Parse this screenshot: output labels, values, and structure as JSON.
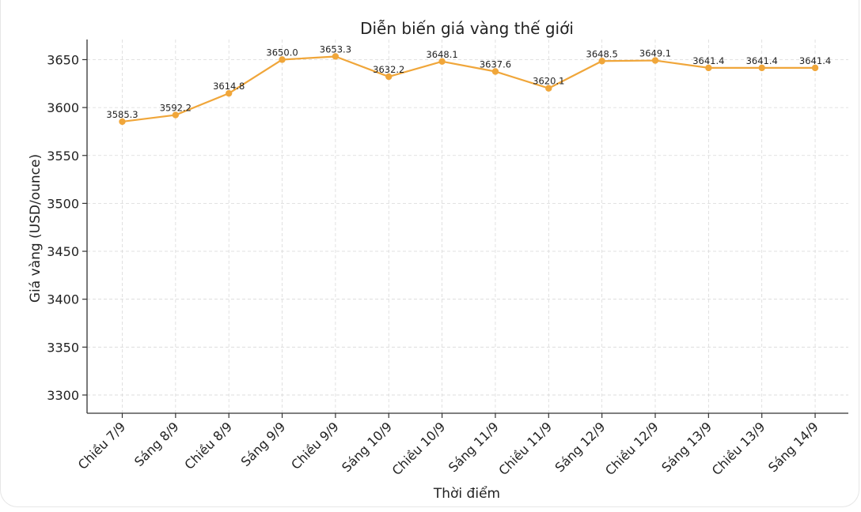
{
  "chart_data": {
    "type": "line",
    "title": "Diễn biến giá vàng thế giới",
    "xlabel": "Thời điểm",
    "ylabel": "Giá vàng (USD/ounce)",
    "categories": [
      "Chiều 7/9",
      "Sáng 8/9",
      "Chiều 8/9",
      "Sáng 9/9",
      "Chiều 9/9",
      "Sáng 10/9",
      "Chiều 10/9",
      "Sáng 11/9",
      "Chiều 11/9",
      "Sáng 12/9",
      "Chiều 12/9",
      "Sáng 13/9",
      "Chiều 13/9",
      "Sáng 14/9"
    ],
    "values": [
      3585.3,
      3592.2,
      3614.8,
      3650.0,
      3653.3,
      3632.2,
      3648.1,
      3637.6,
      3620.1,
      3648.5,
      3649.1,
      3641.4,
      3641.4,
      3641.4
    ],
    "data_labels": [
      "3585.3",
      "3592.2",
      "3614.8",
      "3650.0",
      "3653.3",
      "3632.2",
      "3648.1",
      "3637.6",
      "3620.1",
      "3648.5",
      "3649.1",
      "3641.4",
      "3641.4",
      "3641.4"
    ],
    "ylim": [
      3281,
      3671
    ],
    "yticks": [
      3300,
      3350,
      3400,
      3450,
      3500,
      3550,
      3600,
      3650
    ],
    "grid": true,
    "color": "#F0A63A"
  }
}
